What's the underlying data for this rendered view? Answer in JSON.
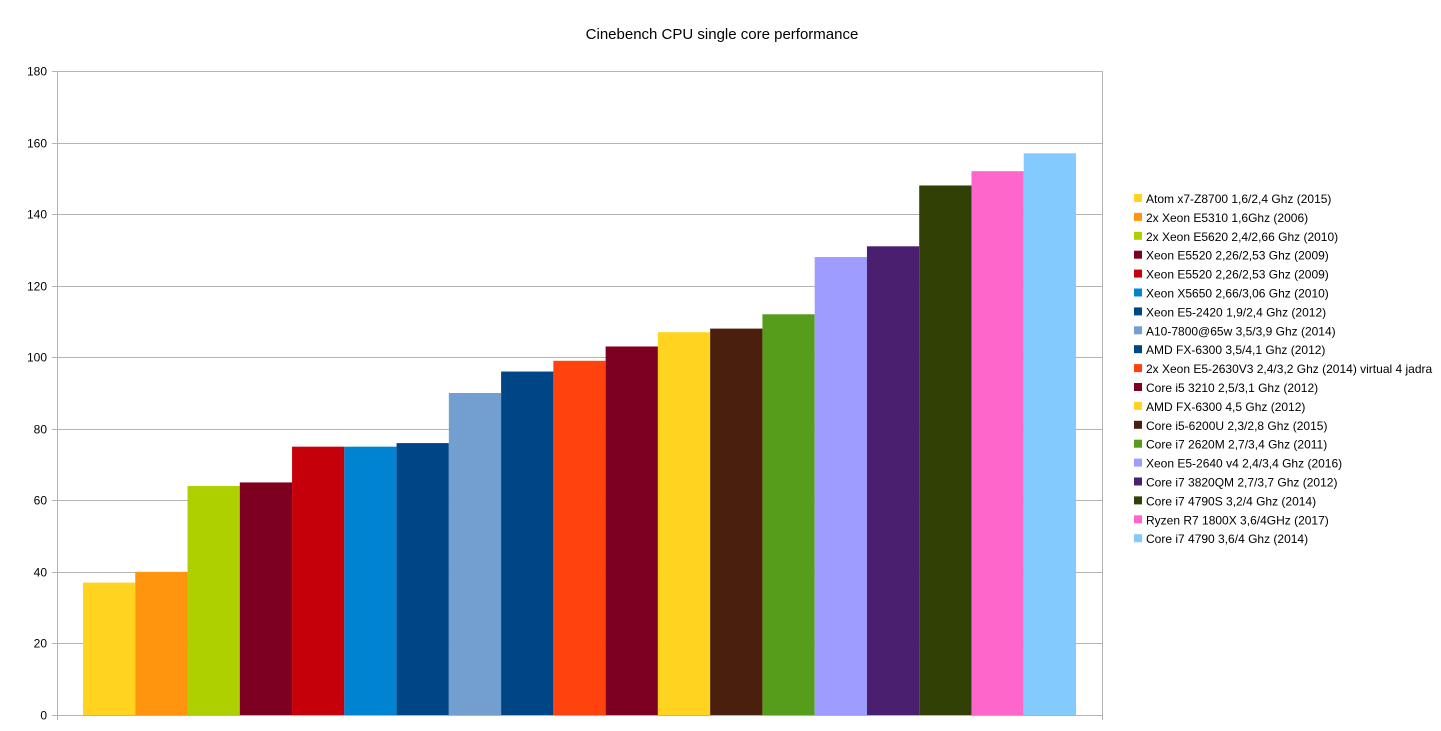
{
  "chart_data": {
    "type": "bar",
    "title": "Cinebench CPU single core performance",
    "xlabel": "",
    "ylabel": "",
    "ylim": [
      0,
      180
    ],
    "yticks": [
      0,
      20,
      40,
      60,
      80,
      100,
      120,
      140,
      160,
      180
    ],
    "grid": true,
    "legend_position": "right",
    "series": [
      {
        "name": "Atom x7-Z8700 1,6/2,4 Ghz (2015)",
        "value": 37,
        "color": "#ffd320"
      },
      {
        "name": "2x Xeon E5310 1,6Ghz (2006)",
        "value": 40,
        "color": "#ff950e"
      },
      {
        "name": "2x Xeon E5620 2,4/2,66 Ghz (2010)",
        "value": 64,
        "color": "#aecf00"
      },
      {
        "name": "Xeon E5520 2,26/2,53 Ghz (2009)",
        "value": 65,
        "color": "#7e0021"
      },
      {
        "name": "Xeon E5520 2,26/2,53 Ghz (2009)",
        "value": 75,
        "color": "#c5000b"
      },
      {
        "name": "Xeon X5650 2,66/3,06 Ghz (2010)",
        "value": 75,
        "color": "#0084d1"
      },
      {
        "name": "Xeon E5-2420 1,9/2,4 Ghz (2012)",
        "value": 76,
        "color": "#004586"
      },
      {
        "name": "A10-7800@65w 3,5/3,9 Ghz (2014)",
        "value": 90,
        "color": "#729fcf"
      },
      {
        "name": "AMD FX-6300 3,5/4,1 Ghz (2012)",
        "value": 96,
        "color": "#004586"
      },
      {
        "name": "2x Xeon E5-2630V3 2,4/3,2 Ghz (2014) virtual 4 jadra",
        "value": 99,
        "color": "#ff420e"
      },
      {
        "name": "Core i5 3210 2,5/3,1 Ghz (2012)",
        "value": 103,
        "color": "#7e0021"
      },
      {
        "name": "AMD FX-6300 4,5 Ghz (2012)",
        "value": 107,
        "color": "#ffd320"
      },
      {
        "name": "Core i5-6200U 2,3/2,8 Ghz (2015)",
        "value": 108,
        "color": "#4b1f0d"
      },
      {
        "name": "Core i7 2620M 2,7/3,4 Ghz (2011)",
        "value": 112,
        "color": "#579d1c"
      },
      {
        "name": "Xeon E5-2640 v4 2,4/3,4 Ghz (2016)",
        "value": 128,
        "color": "#9e9cff"
      },
      {
        "name": "Core i7 3820QM  2,7/3,7 Ghz (2012)",
        "value": 131,
        "color": "#4b1f6f"
      },
      {
        "name": "Core i7 4790S 3,2/4 Ghz (2014)",
        "value": 148,
        "color": "#314004"
      },
      {
        "name": "Ryzen R7 1800X 3,6/4GHz (2017)",
        "value": 152,
        "color": "#ff66cc"
      },
      {
        "name": "Core i7 4790 3,6/4 Ghz (2014)",
        "value": 157,
        "color": "#83caff"
      }
    ]
  }
}
